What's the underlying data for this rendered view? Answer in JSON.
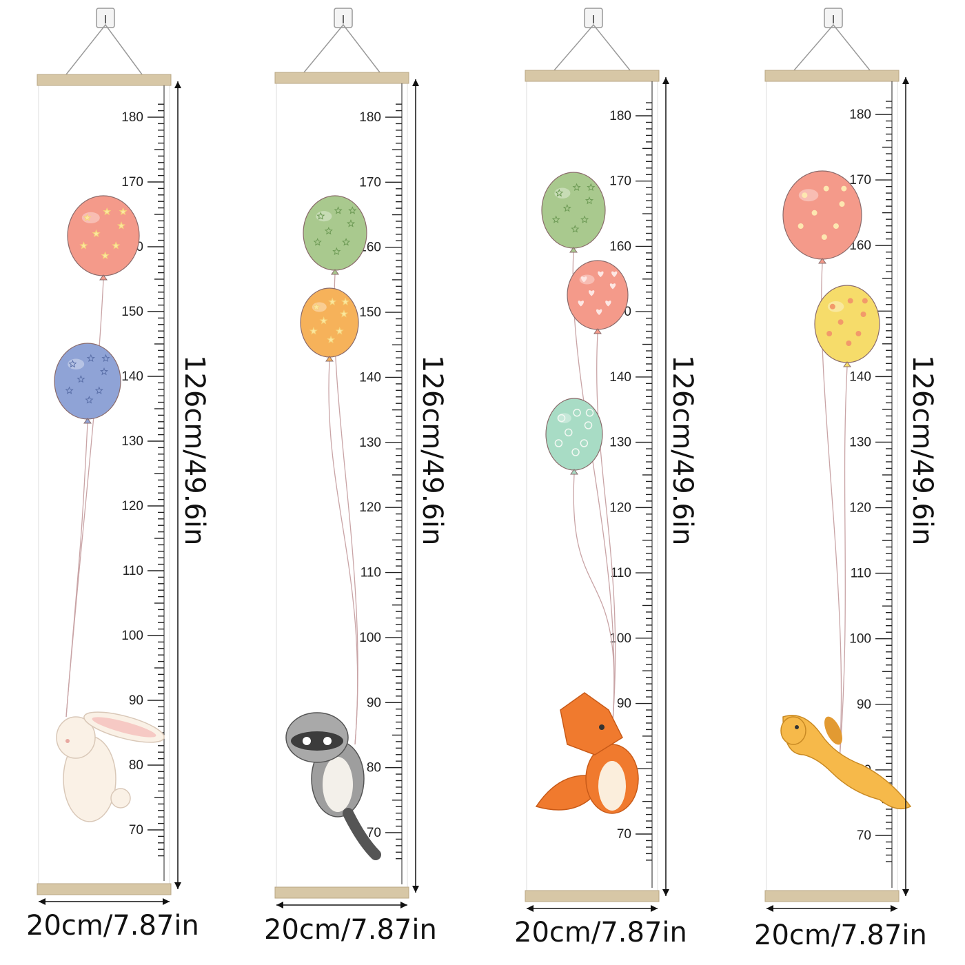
{
  "products": [
    {
      "name": "bunny",
      "width_label": "20cm/7.87in",
      "height_label": "126cm/49.6in",
      "scale_labels": [
        "180",
        "170",
        "160",
        "150",
        "140",
        "130",
        "120",
        "110",
        "100",
        "90",
        "80",
        "70"
      ],
      "balloons": [
        {
          "color": "#f49a8a",
          "pattern": "stars"
        },
        {
          "color": "#8fa3d6",
          "pattern": "stars"
        }
      ],
      "animal": "bunny-icon"
    },
    {
      "name": "raccoon",
      "width_label": "20cm/7.87in",
      "height_label": "126cm/49.6in",
      "scale_labels": [
        "180",
        "170",
        "160",
        "150",
        "140",
        "130",
        "120",
        "110",
        "100",
        "90",
        "80",
        "70"
      ],
      "balloons": [
        {
          "color": "#a9c98e",
          "pattern": "stars"
        },
        {
          "color": "#f6b25a",
          "pattern": "stars"
        }
      ],
      "animal": "raccoon-icon"
    },
    {
      "name": "fox",
      "width_label": "20cm/7.87in",
      "height_label": "126cm/49.6in",
      "scale_labels": [
        "180",
        "170",
        "160",
        "150",
        "140",
        "130",
        "120",
        "110",
        "100",
        "90",
        "80",
        "70"
      ],
      "balloons": [
        {
          "color": "#a9c98e",
          "pattern": "stars"
        },
        {
          "color": "#f49a8a",
          "pattern": "hearts"
        },
        {
          "color": "#a8dcc5",
          "pattern": "swirls"
        }
      ],
      "animal": "fox-icon"
    },
    {
      "name": "puppy",
      "width_label": "20cm/7.87in",
      "height_label": "126cm/49.6in",
      "scale_labels": [
        "180",
        "170",
        "160",
        "150",
        "140",
        "130",
        "120",
        "110",
        "100",
        "90",
        "80",
        "70"
      ],
      "balloons": [
        {
          "color": "#f49a8a",
          "pattern": "flowers"
        },
        {
          "color": "#f6dc6a",
          "pattern": "flowers"
        }
      ],
      "animal": "puppy-icon"
    }
  ]
}
